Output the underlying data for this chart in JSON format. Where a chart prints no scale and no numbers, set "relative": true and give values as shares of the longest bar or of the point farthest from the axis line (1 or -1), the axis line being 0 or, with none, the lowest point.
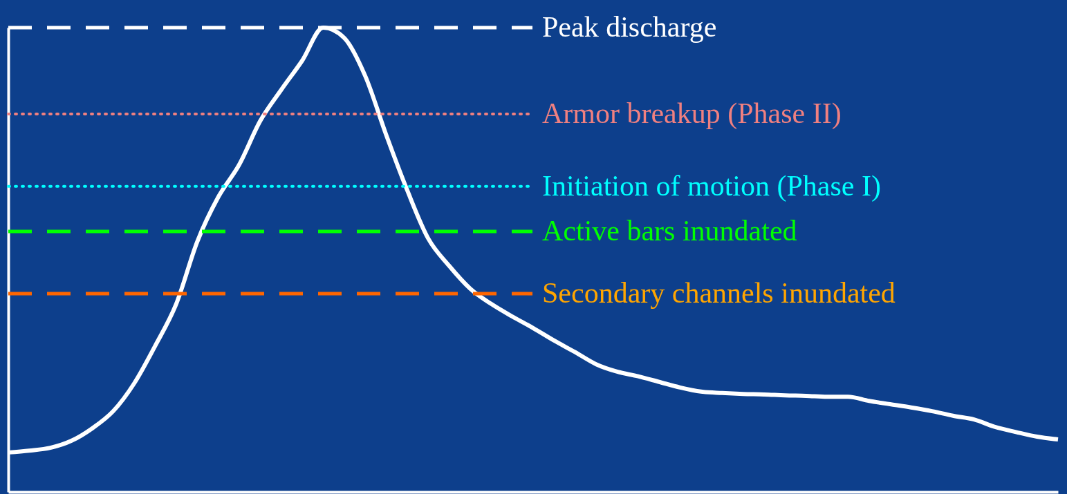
{
  "chart_data": {
    "type": "line",
    "relative": true,
    "marker": "none",
    "line_style": "solid",
    "grid": false,
    "categories": [
      null,
      null,
      null,
      null,
      null,
      null,
      null,
      null,
      null,
      null,
      null,
      null,
      null,
      null,
      null,
      null,
      null,
      null,
      null,
      null,
      null,
      null,
      null,
      null,
      null,
      null,
      null,
      null,
      null,
      null,
      null,
      null,
      null,
      null,
      null,
      null,
      null,
      null,
      null,
      null,
      null,
      null,
      null,
      null,
      null,
      null,
      null,
      null,
      null,
      null,
      null
    ],
    "series": [
      {
        "color": "#ffffff",
        "values": [
          0.085,
          0.089,
          0.095,
          0.11,
          0.137,
          0.174,
          0.234,
          0.315,
          0.405,
          0.539,
          0.635,
          0.705,
          0.799,
          0.866,
          0.929,
          1.0,
          0.978,
          0.896,
          0.769,
          0.65,
          0.546,
          0.487,
          0.438,
          0.405,
          0.378,
          0.353,
          0.326,
          0.301,
          0.275,
          0.259,
          0.249,
          0.237,
          0.225,
          0.216,
          0.213,
          0.211,
          0.21,
          0.208,
          0.207,
          0.205,
          0.205,
          0.196,
          0.189,
          0.182,
          0.174,
          0.164,
          0.156,
          0.14,
          0.129,
          0.119,
          0.113
        ]
      }
    ],
    "ref_lines": [
      {
        "axis": "y",
        "value": 1.0,
        "label": "Peak discharge",
        "color": "#ffffff",
        "line_style": "dashed"
      },
      {
        "axis": "y",
        "value": 0.814,
        "label": "Armor breakup (Phase II)",
        "color": "#f08080",
        "line_style": "dotted"
      },
      {
        "axis": "y",
        "value": 0.658,
        "label": "Initiation of motion (Phase I)",
        "color": "#00ffff",
        "line_style": "dotted"
      },
      {
        "axis": "y",
        "value": 0.561,
        "label": "Active bars inundated",
        "color": "#00ff00",
        "line_style": "dashed"
      },
      {
        "axis": "y",
        "value": 0.427,
        "label": "Secondary channels inundated",
        "color": "#ff6600",
        "line_style": "dashed"
      }
    ]
  }
}
